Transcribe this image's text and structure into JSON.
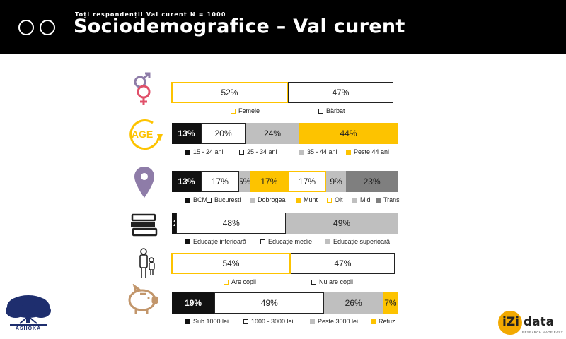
{
  "header": {
    "subtitle": "Toți respondenții Val curent N = 1000",
    "title": "Sociodemografice – Val curent"
  },
  "colors": {
    "yellow": "#FDC300",
    "black": "#111111",
    "light_grey": "#BFBFBF",
    "mid_grey": "#999999",
    "dark_grey": "#7F7F7F",
    "icon_brown": "#C2966B",
    "icon_purple": "#8E7CA8",
    "ashoka_blue": "#1E2E6E"
  },
  "logos": {
    "left": "ASHOKA",
    "right_main": "iZi data",
    "right_tag": "RESEARCH MADE EASY"
  },
  "chart_data": [
    {
      "type": "bar",
      "id": "gen",
      "icon": "gender-icon",
      "series": [
        {
          "name": "Femeie",
          "value": 52,
          "label": "52%",
          "style": "yellow-outline"
        },
        {
          "name": "Bărbat",
          "value": 47,
          "label": "47%",
          "style": "black-outline"
        }
      ]
    },
    {
      "type": "bar",
      "id": "age",
      "icon": "age-icon",
      "series": [
        {
          "name": "15 - 24 ani",
          "value": 13,
          "label": "13%",
          "style": "black"
        },
        {
          "name": "25 - 34 ani",
          "value": 20,
          "label": "20%",
          "style": "white"
        },
        {
          "name": "35 - 44 ani",
          "value": 24,
          "label": "24%",
          "style": "light-grey"
        },
        {
          "name": "Peste 44 ani",
          "value": 44,
          "label": "44%",
          "style": "yellow"
        }
      ]
    },
    {
      "type": "bar",
      "id": "region",
      "icon": "location-pin-icon",
      "series": [
        {
          "name": "BCM",
          "value": 13,
          "label": "13%",
          "style": "black"
        },
        {
          "name": "București",
          "value": 17,
          "label": "17%",
          "style": "white"
        },
        {
          "name": "Dobrogea",
          "value": 5,
          "label": "5%",
          "style": "light-grey"
        },
        {
          "name": "Munt",
          "value": 17,
          "label": "17%",
          "style": "yellow"
        },
        {
          "name": "Olt",
          "value": 17,
          "label": "17%",
          "style": "yellow-outline"
        },
        {
          "name": "Mld",
          "value": 9,
          "label": "9%",
          "style": "light-grey"
        },
        {
          "name": "Trans",
          "value": 23,
          "label": "23%",
          "style": "dark-grey"
        }
      ]
    },
    {
      "type": "bar",
      "id": "edu",
      "icon": "books-icon",
      "series": [
        {
          "name": "Educație inferioară",
          "value": 2,
          "label": "2",
          "style": "black"
        },
        {
          "name": "Educație medie",
          "value": 48,
          "label": "48%",
          "style": "white"
        },
        {
          "name": "Educație superioară",
          "value": 49,
          "label": "49%",
          "style": "light-grey"
        }
      ]
    },
    {
      "type": "bar",
      "id": "kids",
      "icon": "parent-child-icon",
      "series": [
        {
          "name": "Are copii",
          "value": 54,
          "label": "54%",
          "style": "yellow-outline"
        },
        {
          "name": "Nu are copii",
          "value": 47,
          "label": "47%",
          "style": "black-outline"
        }
      ]
    },
    {
      "type": "bar",
      "id": "income",
      "icon": "piggy-bank-icon",
      "series": [
        {
          "name": "Sub 1000 lei",
          "value": 19,
          "label": "19%",
          "style": "black"
        },
        {
          "name": "1000 - 3000 lei",
          "value": 49,
          "label": "49%",
          "style": "white"
        },
        {
          "name": "Peste 3000 lei",
          "value": 26,
          "label": "26%",
          "style": "light-grey"
        },
        {
          "name": "Refuz",
          "value": 7,
          "label": "7%",
          "style": "yellow"
        }
      ]
    }
  ]
}
